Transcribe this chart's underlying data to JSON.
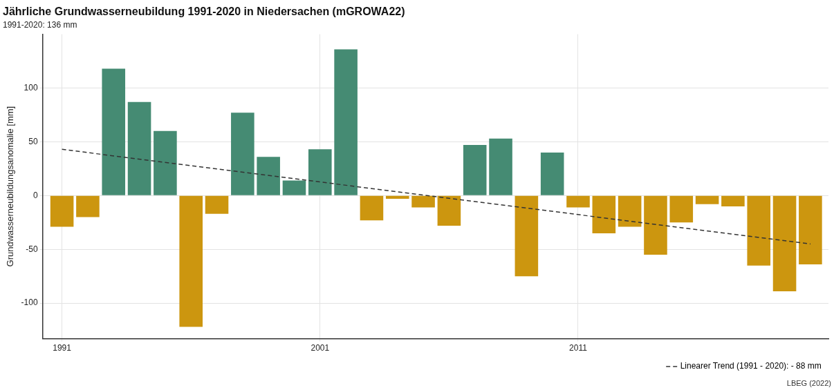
{
  "chart_data": {
    "type": "bar",
    "title": "Jährliche Grundwasserneubildung 1991-2020 in Niedersachen (mGROWA22)",
    "subtitle": "1991-2020: 136 mm",
    "ylabel": "Grundwasserneubildungsanomalie [mm]",
    "x": [
      1991,
      1992,
      1993,
      1994,
      1995,
      1996,
      1997,
      1998,
      1999,
      2000,
      2001,
      2002,
      2003,
      2004,
      2005,
      2006,
      2007,
      2008,
      2009,
      2010,
      2011,
      2012,
      2013,
      2014,
      2015,
      2016,
      2017,
      2018,
      2019,
      2020
    ],
    "values": [
      -29,
      -20,
      118,
      87,
      60,
      -122,
      -17,
      77,
      36,
      14,
      43,
      136,
      -23,
      -3,
      -11,
      -28,
      47,
      53,
      -75,
      40,
      -11,
      -35,
      -29,
      -55,
      -25,
      -8,
      -10,
      -65,
      -89,
      -64
    ],
    "colors": [
      "#cc960f",
      "#cc960f",
      "#458b73",
      "#458b73",
      "#458b73",
      "#cc960f",
      "#cc960f",
      "#458b73",
      "#458b73",
      "#458b73",
      "#458b73",
      "#458b73",
      "#cc960f",
      "#cc960f",
      "#cc960f",
      "#cc960f",
      "#458b73",
      "#458b73",
      "#cc960f",
      "#458b73",
      "#cc960f",
      "#cc960f",
      "#cc960f",
      "#cc960f",
      "#cc960f",
      "#cc960f",
      "#cc960f",
      "#cc960f",
      "#cc960f",
      "#cc960f"
    ],
    "series": [
      {
        "type": "line",
        "name": "Linearer Trend (1991 - 2020): - 88 mm",
        "color": "#333333",
        "x": [
          1991,
          2020
        ],
        "values": [
          43,
          -45
        ],
        "line_style": "dashed",
        "marker": "none"
      }
    ],
    "xlim": [
      1990.25,
      2020.7
    ],
    "xticks": [
      1991,
      2001,
      2011
    ],
    "ylim": [
      -133,
      150
    ],
    "yticks": [
      -100,
      -50,
      0,
      50,
      100
    ],
    "grid": true,
    "legend": "bottom right",
    "annotations": [
      "LBEG (2022)"
    ]
  }
}
